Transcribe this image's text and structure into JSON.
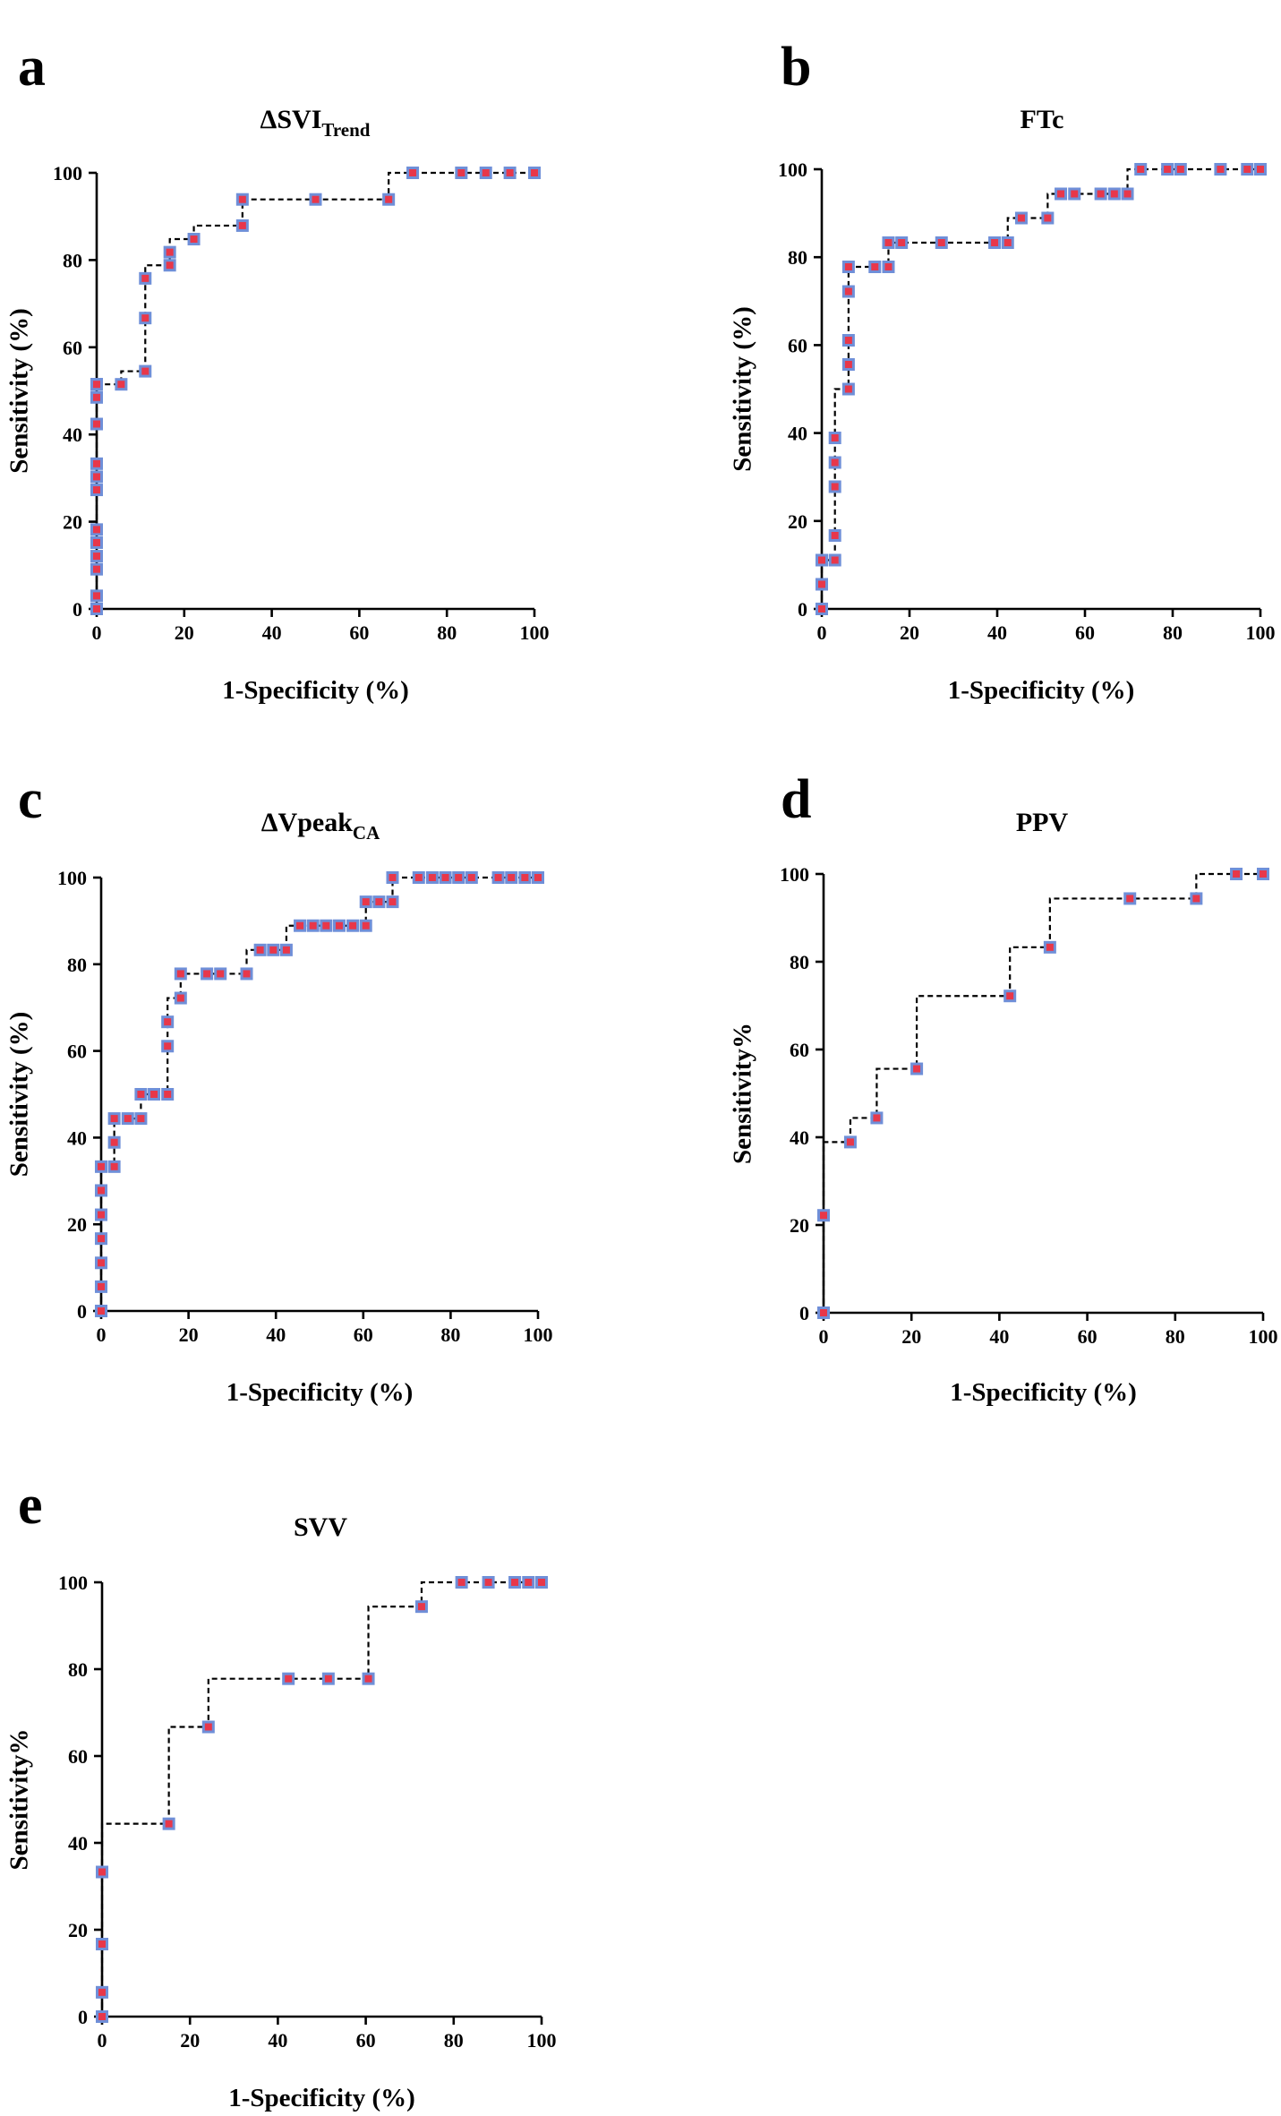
{
  "colors": {
    "marker_fill": "#e8374a",
    "marker_edge": "#6f8fd8",
    "axes": "#000000"
  },
  "chart_data": [
    {
      "panel": "a",
      "type": "line",
      "title": "ΔSVI",
      "title_sub": "Trend",
      "xlabel": "1-Specificity (%)",
      "ylabel": "Sensitivity (%)",
      "xlim": [
        0,
        100
      ],
      "ylim": [
        0,
        100
      ],
      "xticks": [
        "0",
        "20",
        "40",
        "60",
        "80",
        "100"
      ],
      "yticks": [
        "0",
        "20",
        "40",
        "60",
        "80",
        "100"
      ],
      "grid": false,
      "legend": "none",
      "x": [
        0,
        0,
        0,
        0,
        0,
        0,
        0,
        0,
        0,
        0,
        0,
        0,
        0,
        0,
        0,
        5.6,
        11.1,
        11.1,
        11.1,
        16.7,
        16.7,
        22.2,
        33.3,
        33.3,
        50,
        66.7,
        72.2,
        83.3,
        88.9,
        94.4,
        100
      ],
      "y": [
        0,
        3,
        9.1,
        12.1,
        15.2,
        18.2,
        27.3,
        30.3,
        33.3,
        42.4,
        48.5,
        51.5,
        51.5,
        51.5,
        51.5,
        51.5,
        54.5,
        66.7,
        75.8,
        78.8,
        81.8,
        84.8,
        87.9,
        93.9,
        93.9,
        93.9,
        100,
        100,
        100,
        100,
        100
      ]
    },
    {
      "panel": "b",
      "type": "line",
      "title": "FTc",
      "title_sub": "",
      "xlabel": "1-Specificity (%)",
      "ylabel": "Sensitivity (%)",
      "xlim": [
        0,
        100
      ],
      "ylim": [
        0,
        100
      ],
      "xticks": [
        "0",
        "20",
        "40",
        "60",
        "80",
        "100"
      ],
      "yticks": [
        "0",
        "20",
        "40",
        "60",
        "80",
        "100"
      ],
      "grid": false,
      "legend": "none",
      "x": [
        0,
        0,
        0,
        3,
        3,
        3,
        3,
        3,
        6.1,
        6.1,
        6.1,
        6.1,
        6.1,
        12.1,
        15.2,
        15.2,
        18.2,
        27.3,
        39.4,
        42.4,
        45.5,
        51.5,
        54.5,
        57.6,
        63.6,
        66.7,
        69.7,
        72.7,
        78.8,
        81.8,
        90.9,
        97,
        100
      ],
      "y": [
        0,
        5.6,
        11.1,
        11.1,
        16.7,
        27.8,
        33.3,
        38.9,
        50,
        55.6,
        61.1,
        72.2,
        77.8,
        77.8,
        77.8,
        83.3,
        83.3,
        83.3,
        83.3,
        83.3,
        88.9,
        88.9,
        94.4,
        94.4,
        94.4,
        94.4,
        94.4,
        100,
        100,
        100,
        100,
        100,
        100
      ]
    },
    {
      "panel": "c",
      "type": "line",
      "title": "ΔVpeak",
      "title_sub": "CA",
      "xlabel": "1-Specificity (%)",
      "ylabel": "Sensitivity (%)",
      "xlim": [
        0,
        100
      ],
      "ylim": [
        0,
        100
      ],
      "xticks": [
        "0",
        "20",
        "40",
        "60",
        "80",
        "100"
      ],
      "yticks": [
        "0",
        "20",
        "40",
        "60",
        "80",
        "100"
      ],
      "grid": false,
      "legend": "none",
      "x": [
        0,
        0,
        0,
        0,
        0,
        0,
        0,
        3,
        3,
        3,
        6.1,
        9.1,
        9.1,
        12.1,
        15.2,
        15.2,
        15.2,
        18.2,
        18.2,
        24.2,
        27.3,
        33.3,
        36.4,
        39.4,
        42.4,
        45.5,
        48.5,
        51.5,
        54.5,
        57.6,
        60.6,
        60.6,
        63.6,
        66.7,
        66.7,
        72.7,
        75.8,
        78.8,
        81.8,
        84.8,
        90.9,
        93.9,
        97,
        100
      ],
      "y": [
        0,
        5.6,
        11.1,
        16.7,
        22.2,
        27.8,
        33.3,
        33.3,
        38.9,
        44.4,
        44.4,
        44.4,
        50,
        50,
        50,
        61.1,
        66.7,
        72.2,
        77.8,
        77.8,
        77.8,
        77.8,
        83.3,
        83.3,
        83.3,
        88.9,
        88.9,
        88.9,
        88.9,
        88.9,
        88.9,
        94.4,
        94.4,
        94.4,
        100,
        100,
        100,
        100,
        100,
        100,
        100,
        100,
        100,
        100
      ]
    },
    {
      "panel": "d",
      "type": "line",
      "title": "PPV",
      "title_sub": "",
      "xlabel": "1-Specificity (%)",
      "ylabel": "Sensitivity%",
      "xlim": [
        0,
        100
      ],
      "ylim": [
        0,
        100
      ],
      "xticks": [
        "0",
        "20",
        "40",
        "60",
        "80",
        "100"
      ],
      "yticks": [
        "0",
        "20",
        "40",
        "60",
        "80",
        "100"
      ],
      "grid": false,
      "legend": "none",
      "x": [
        0,
        0,
        6.1,
        12.1,
        21.2,
        42.4,
        51.5,
        69.7,
        84.8,
        93.9,
        100
      ],
      "y": [
        0,
        22.2,
        38.9,
        44.4,
        55.6,
        72.2,
        83.3,
        94.4,
        94.4,
        100,
        100
      ]
    },
    {
      "panel": "e",
      "type": "line",
      "title": "SVV",
      "title_sub": "",
      "xlabel": "1-Specificity (%)",
      "ylabel": "Sensitivity%",
      "xlim": [
        0,
        100
      ],
      "ylim": [
        0,
        100
      ],
      "xticks": [
        "0",
        "20",
        "40",
        "60",
        "80",
        "100"
      ],
      "yticks": [
        "0",
        "20",
        "40",
        "60",
        "80",
        "100"
      ],
      "grid": false,
      "legend": "none",
      "x": [
        0,
        0,
        0,
        0,
        15.2,
        24.2,
        42.4,
        51.5,
        60.6,
        72.7,
        81.8,
        87.9,
        93.9,
        97,
        100
      ],
      "y": [
        0,
        5.6,
        16.7,
        33.3,
        44.4,
        66.7,
        77.8,
        77.8,
        77.8,
        94.4,
        100,
        100,
        100,
        100,
        100
      ]
    }
  ]
}
